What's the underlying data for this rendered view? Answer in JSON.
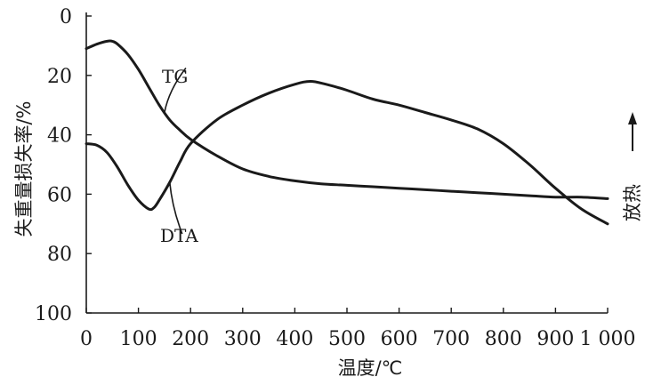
{
  "chart_data": {
    "type": "line",
    "xlabel": "温度/℃",
    "ylabel": "失重量损失率/%",
    "right_label": "放热",
    "right_arrow": "up",
    "xlim": [
      0,
      1000
    ],
    "ylim": [
      0,
      100
    ],
    "y_inverted": true,
    "x_ticks": [
      0,
      100,
      200,
      300,
      400,
      500,
      600,
      700,
      800,
      900,
      1000
    ],
    "x_tick_labels": [
      "0",
      "100",
      "200",
      "300",
      "400",
      "500",
      "600",
      "700",
      "800",
      "900",
      "1 000"
    ],
    "y_ticks": [
      0,
      20,
      40,
      60,
      80,
      100
    ],
    "y_tick_labels": [
      "0",
      "20",
      "40",
      "60",
      "80",
      "100"
    ],
    "grid": false,
    "series": [
      {
        "name": "TG",
        "x": [
          0,
          20,
          40,
          50,
          60,
          80,
          100,
          120,
          140,
          160,
          180,
          200,
          250,
          300,
          350,
          400,
          450,
          500,
          550,
          600,
          650,
          700,
          750,
          800,
          850,
          900,
          950,
          1000
        ],
        "y": [
          11,
          9.5,
          8.5,
          8.5,
          9.5,
          13,
          18,
          24,
          30,
          35,
          38.5,
          41.5,
          47,
          51.5,
          54,
          55.5,
          56.5,
          57,
          57.5,
          58,
          58.5,
          59,
          59.5,
          60,
          60.5,
          61,
          61,
          61.5
        ]
      },
      {
        "name": "DTA",
        "x": [
          0,
          20,
          40,
          60,
          80,
          100,
          120,
          130,
          140,
          160,
          180,
          200,
          250,
          300,
          350,
          400,
          430,
          460,
          500,
          550,
          600,
          650,
          700,
          750,
          800,
          850,
          900,
          950,
          1000
        ],
        "y": [
          43,
          43.5,
          46,
          51,
          57,
          62,
          65,
          64.5,
          62,
          56,
          49,
          43,
          35,
          30,
          26,
          23,
          22,
          23,
          25,
          28,
          30,
          32.5,
          35,
          38,
          43,
          50,
          58,
          65,
          70
        ]
      }
    ],
    "annotations": [
      {
        "text": "TG",
        "series": "TG",
        "at_x": 150
      },
      {
        "text": "DTA",
        "series": "DTA",
        "at_x": 160
      }
    ]
  }
}
